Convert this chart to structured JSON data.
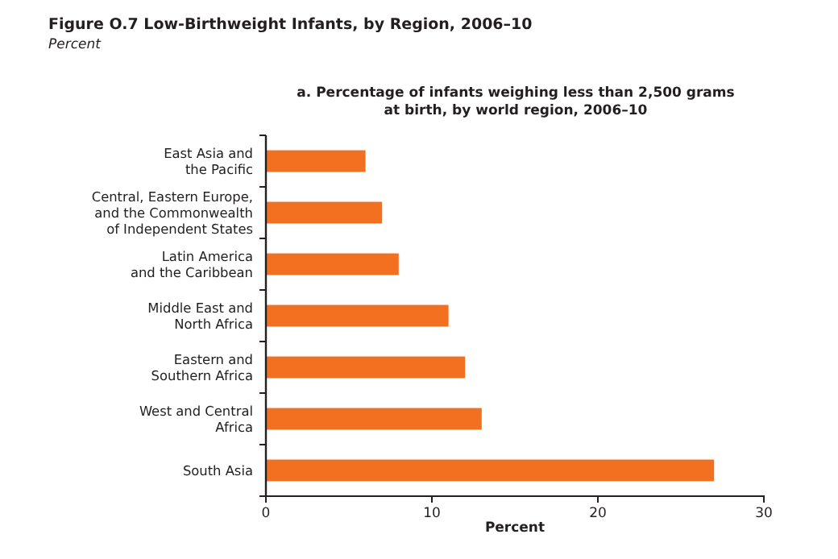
{
  "chart_data": {
    "type": "bar",
    "orientation": "horizontal",
    "title": "Figure O.7  Low-Birthweight Infants, by Region, 2006–10",
    "subtitle": "Percent",
    "annotations": [
      "a. Percentage of infants weighing less than 2,500 grams\nat birth, by world region, 2006–10"
    ],
    "categories": [
      "East Asia and\nthe Pacific",
      "Central, Eastern Europe,\nand the Commonwealth\nof Independent States",
      "Latin America\nand the Caribbean",
      "Middle East and\nNorth Africa",
      "Eastern and\nSouthern Africa",
      "West and Central\nAfrica",
      "South Asia"
    ],
    "values": [
      6,
      7,
      8,
      11,
      12,
      13,
      27
    ],
    "color": "#f37021",
    "xlim": [
      0,
      30
    ],
    "xticks": [
      0,
      10,
      20,
      30
    ],
    "xlabel": "Percent",
    "grid": false
  }
}
